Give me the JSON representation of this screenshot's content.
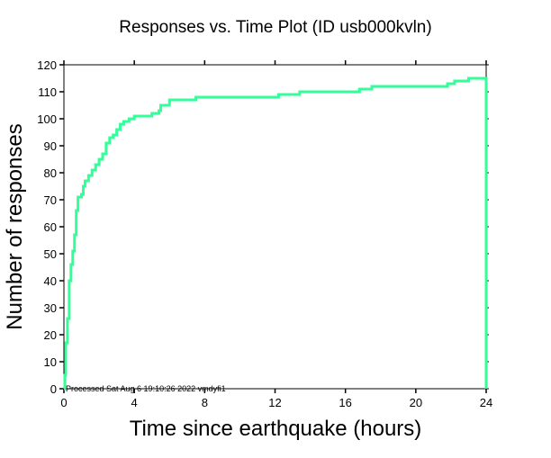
{
  "chart_data": {
    "type": "line",
    "title": "Responses vs. Time Plot (ID usb000kvln)",
    "xlabel": "Time since earthquake (hours)",
    "ylabel": "Number of responses",
    "xlim": [
      0,
      24
    ],
    "ylim": [
      0,
      120
    ],
    "xticks": [
      "0",
      "4",
      "8",
      "12",
      "16",
      "20",
      "24"
    ],
    "yticks": [
      "0",
      "10",
      "20",
      "30",
      "40",
      "50",
      "60",
      "70",
      "80",
      "90",
      "100",
      "110",
      "120"
    ],
    "grid": false,
    "annotation": "Processed Sat Aug  6 19:10:26 2022 vmdyfi1",
    "series": [
      {
        "name": "responses",
        "color": "#33ff99",
        "step": true,
        "x": [
          0,
          0.05,
          0.1,
          0.2,
          0.3,
          0.4,
          0.5,
          0.6,
          0.7,
          0.8,
          1.0,
          1.1,
          1.2,
          1.4,
          1.6,
          1.8,
          2.0,
          2.2,
          2.4,
          2.6,
          2.8,
          3.0,
          3.2,
          3.4,
          3.7,
          4.0,
          5.0,
          5.4,
          5.5,
          6.0,
          7.5,
          12.2,
          13.4,
          16.8,
          17.5,
          21.8,
          22.2,
          23.0,
          24.0
        ],
        "y": [
          0,
          5,
          17,
          26,
          40,
          46,
          51,
          57,
          66,
          71,
          72,
          75,
          77,
          79,
          81,
          83,
          85,
          87,
          91,
          93,
          94,
          96,
          98,
          99,
          100,
          101,
          102,
          103,
          105,
          107,
          108,
          109,
          110,
          111,
          112,
          113,
          114,
          115,
          115
        ]
      }
    ]
  }
}
